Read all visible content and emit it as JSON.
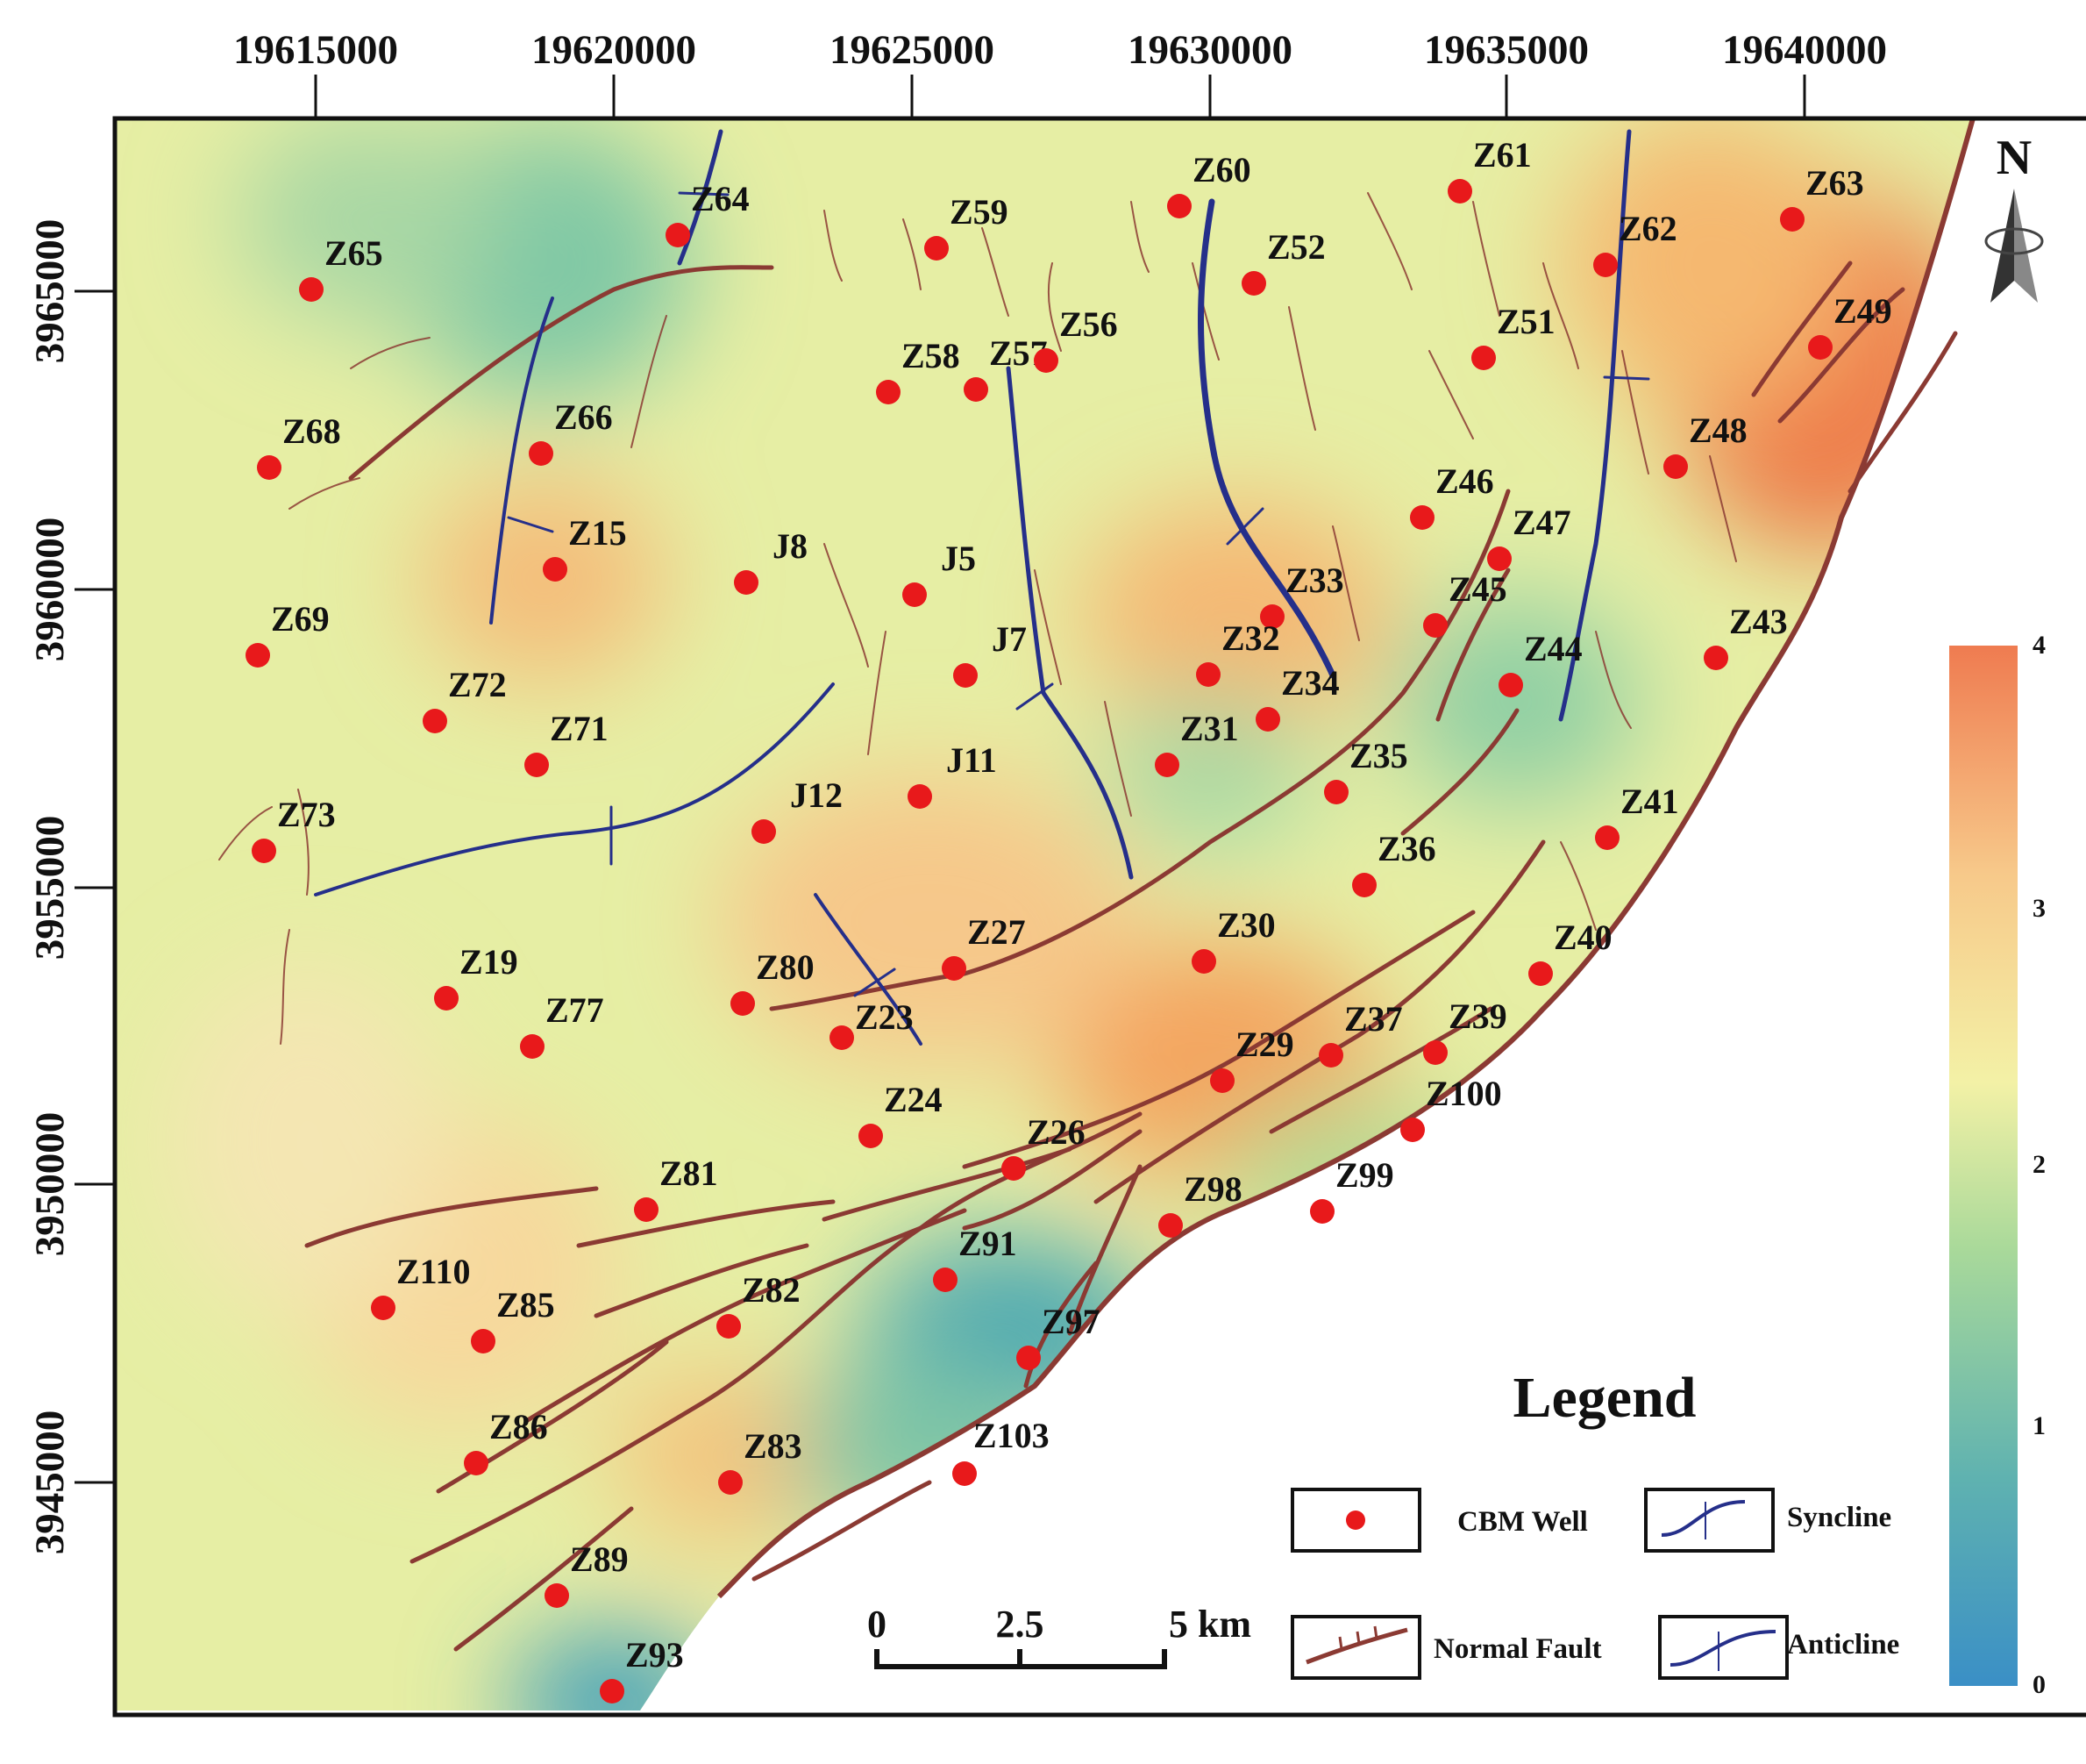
{
  "x_ticks": [
    "19615000",
    "19620000",
    "19625000",
    "19630000",
    "19635000",
    "19640000"
  ],
  "y_ticks": [
    "3965000",
    "3960000",
    "3955000",
    "3950000",
    "3945000"
  ],
  "north_label": "N",
  "legend": {
    "title": "Legend",
    "items": {
      "well": "CBM Well",
      "syncline": "Syncline",
      "fault": "Normal Fault",
      "anticline": "Anticline"
    }
  },
  "scale_bar": {
    "labels": [
      "0",
      "2.5",
      "5 km"
    ]
  },
  "colorbar": {
    "labels": [
      "4",
      "3",
      "2",
      "1",
      "0"
    ],
    "colors": [
      "#ef7b50",
      "#f7c98a",
      "#f3f1a6",
      "#a9d99a",
      "#5fb2b0",
      "#3a8fc6"
    ]
  },
  "colors": {
    "well": "#e8191b",
    "fault": "#8b3a33",
    "fold": "#252f8a",
    "map_base": "#e4eda0"
  },
  "wells": [
    {
      "id": "Z65",
      "label": "Z65"
    },
    {
      "id": "Z64",
      "label": "Z64"
    },
    {
      "id": "Z59",
      "label": "Z59"
    },
    {
      "id": "Z60",
      "label": "Z60"
    },
    {
      "id": "Z52",
      "label": "Z52"
    },
    {
      "id": "Z61",
      "label": "Z61"
    },
    {
      "id": "Z62",
      "label": "Z62"
    },
    {
      "id": "Z63",
      "label": "Z63"
    },
    {
      "id": "Z49",
      "label": "Z49"
    },
    {
      "id": "Z68",
      "label": "Z68"
    },
    {
      "id": "Z66",
      "label": "Z66"
    },
    {
      "id": "Z58",
      "label": "Z58"
    },
    {
      "id": "Z57",
      "label": "Z57"
    },
    {
      "id": "Z56",
      "label": "Z56"
    },
    {
      "id": "Z51",
      "label": "Z51"
    },
    {
      "id": "Z48",
      "label": "Z48"
    },
    {
      "id": "Z46",
      "label": "Z46"
    },
    {
      "id": "Z47",
      "label": "Z47"
    },
    {
      "id": "Z15",
      "label": "Z15"
    },
    {
      "id": "J8",
      "label": "J8"
    },
    {
      "id": "J5",
      "label": "J5"
    },
    {
      "id": "Z33",
      "label": "Z33"
    },
    {
      "id": "Z45",
      "label": "Z45"
    },
    {
      "id": "Z69",
      "label": "Z69"
    },
    {
      "id": "J7",
      "label": "J7"
    },
    {
      "id": "Z32",
      "label": "Z32"
    },
    {
      "id": "Z43",
      "label": "Z43"
    },
    {
      "id": "Z44",
      "label": "Z44"
    },
    {
      "id": "Z34",
      "label": "Z34"
    },
    {
      "id": "Z72",
      "label": "Z72"
    },
    {
      "id": "Z71",
      "label": "Z71"
    },
    {
      "id": "Z31",
      "label": "Z31"
    },
    {
      "id": "J11",
      "label": "J11"
    },
    {
      "id": "Z35",
      "label": "Z35"
    },
    {
      "id": "J12",
      "label": "J12"
    },
    {
      "id": "Z73",
      "label": "Z73"
    },
    {
      "id": "Z41",
      "label": "Z41"
    },
    {
      "id": "Z36",
      "label": "Z36"
    },
    {
      "id": "Z27",
      "label": "Z27"
    },
    {
      "id": "Z30",
      "label": "Z30"
    },
    {
      "id": "Z40",
      "label": "Z40"
    },
    {
      "id": "Z19",
      "label": "Z19"
    },
    {
      "id": "Z80",
      "label": "Z80"
    },
    {
      "id": "Z23",
      "label": "Z23"
    },
    {
      "id": "Z77",
      "label": "Z77"
    },
    {
      "id": "Z29",
      "label": "Z29"
    },
    {
      "id": "Z37",
      "label": "Z37"
    },
    {
      "id": "Z39",
      "label": "Z39"
    },
    {
      "id": "Z100",
      "label": "Z100"
    },
    {
      "id": "Z24",
      "label": "Z24"
    },
    {
      "id": "Z26",
      "label": "Z26"
    },
    {
      "id": "Z81",
      "label": "Z81"
    },
    {
      "id": "Z98",
      "label": "Z98"
    },
    {
      "id": "Z99",
      "label": "Z99"
    },
    {
      "id": "Z91",
      "label": "Z91"
    },
    {
      "id": "Z110",
      "label": "Z110"
    },
    {
      "id": "Z85",
      "label": "Z85"
    },
    {
      "id": "Z82",
      "label": "Z82"
    },
    {
      "id": "Z97",
      "label": "Z97"
    },
    {
      "id": "Z86",
      "label": "Z86"
    },
    {
      "id": "Z83",
      "label": "Z83"
    },
    {
      "id": "Z103",
      "label": "Z103"
    },
    {
      "id": "Z89",
      "label": "Z89"
    },
    {
      "id": "Z93",
      "label": "Z93"
    }
  ]
}
